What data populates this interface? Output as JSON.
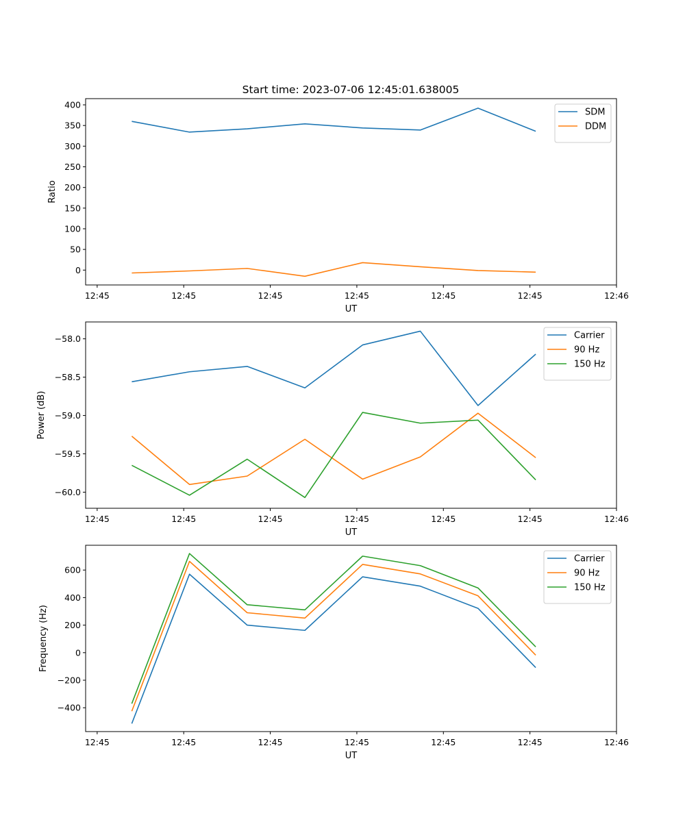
{
  "figure": {
    "title": "Start time: 2023-07-06 12:45:01.638005"
  },
  "chart_data": [
    {
      "type": "line",
      "title": "Start time: 2023-07-06 12:45:01.638005",
      "xlabel": "UT",
      "ylabel": "Ratio",
      "x": [
        1,
        2,
        3,
        4,
        5,
        6,
        7,
        8
      ],
      "xlim": [
        0.2,
        9.4
      ],
      "xticks": [
        0.4,
        1.9,
        3.4,
        4.9,
        6.4,
        7.9,
        9.4
      ],
      "xticklabels": [
        "12:45",
        "12:45",
        "12:45",
        "12:45",
        "12:45",
        "12:45",
        "12:46"
      ],
      "ylim": [
        -36,
        415
      ],
      "yticks": [
        0,
        50,
        100,
        150,
        200,
        250,
        300,
        350,
        400
      ],
      "yticklabels": [
        "0",
        "50",
        "100",
        "150",
        "200",
        "250",
        "300",
        "350",
        "400"
      ],
      "legend": "top-right",
      "series": [
        {
          "name": "SDM",
          "color": "#1f77b4",
          "values": [
            360,
            334,
            342,
            354,
            344,
            339,
            392,
            336
          ]
        },
        {
          "name": "DDM",
          "color": "#ff7f0e",
          "values": [
            -7,
            -2,
            4,
            -15,
            18,
            8,
            -1,
            -5
          ]
        }
      ]
    },
    {
      "type": "line",
      "title": "",
      "xlabel": "UT",
      "ylabel": "Power (dB)",
      "x": [
        1,
        2,
        3,
        4,
        5,
        6,
        7,
        8
      ],
      "xlim": [
        0.2,
        9.4
      ],
      "xticks": [
        0.4,
        1.9,
        3.4,
        4.9,
        6.4,
        7.9,
        9.4
      ],
      "xticklabels": [
        "12:45",
        "12:45",
        "12:45",
        "12:45",
        "12:45",
        "12:45",
        "12:46"
      ],
      "ylim": [
        -60.21,
        -57.78
      ],
      "yticks": [
        -60.0,
        -59.5,
        -59.0,
        -58.5,
        -58.0
      ],
      "yticklabels": [
        "−60.0",
        "−59.5",
        "−59.0",
        "−58.5",
        "−58.0"
      ],
      "legend": "top-right",
      "series": [
        {
          "name": "Carrier",
          "color": "#1f77b4",
          "values": [
            -58.56,
            -58.43,
            -58.36,
            -58.64,
            -58.08,
            -57.9,
            -58.87,
            -58.2
          ]
        },
        {
          "name": "90 Hz",
          "color": "#ff7f0e",
          "values": [
            -59.27,
            -59.9,
            -59.79,
            -59.31,
            -59.83,
            -59.54,
            -58.97,
            -59.55
          ]
        },
        {
          "name": "150 Hz",
          "color": "#2ca02c",
          "values": [
            -59.65,
            -60.04,
            -59.57,
            -60.07,
            -58.96,
            -59.1,
            -59.06,
            -59.84
          ]
        }
      ]
    },
    {
      "type": "line",
      "title": "",
      "xlabel": "UT",
      "ylabel": "Frequency (Hz)",
      "x": [
        1,
        2,
        3,
        4,
        5,
        6,
        7,
        8
      ],
      "xlim": [
        0.2,
        9.4
      ],
      "xticks": [
        0.4,
        1.9,
        3.4,
        4.9,
        6.4,
        7.9,
        9.4
      ],
      "xticklabels": [
        "12:45",
        "12:45",
        "12:45",
        "12:45",
        "12:45",
        "12:45",
        "12:46"
      ],
      "ylim": [
        -573,
        780
      ],
      "yticks": [
        -400,
        -200,
        0,
        200,
        400,
        600
      ],
      "yticklabels": [
        "−400",
        "−200",
        "0",
        "200",
        "400",
        "600"
      ],
      "legend": "top-right",
      "series": [
        {
          "name": "Carrier",
          "color": "#1f77b4",
          "values": [
            -515,
            570,
            200,
            162,
            551,
            483,
            322,
            -108
          ]
        },
        {
          "name": "90 Hz",
          "color": "#ff7f0e",
          "values": [
            -425,
            663,
            290,
            251,
            641,
            572,
            413,
            -18
          ]
        },
        {
          "name": "150 Hz",
          "color": "#2ca02c",
          "values": [
            -370,
            720,
            348,
            311,
            701,
            632,
            470,
            42
          ]
        }
      ]
    }
  ]
}
